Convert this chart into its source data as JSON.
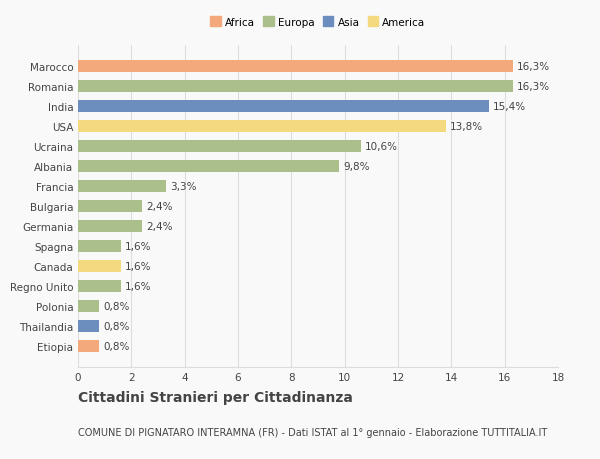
{
  "categories": [
    "Marocco",
    "Romania",
    "India",
    "USA",
    "Ucraina",
    "Albania",
    "Francia",
    "Bulgaria",
    "Germania",
    "Spagna",
    "Canada",
    "Regno Unito",
    "Polonia",
    "Thailandia",
    "Etiopia"
  ],
  "values": [
    16.3,
    16.3,
    15.4,
    13.8,
    10.6,
    9.8,
    3.3,
    2.4,
    2.4,
    1.6,
    1.6,
    1.6,
    0.8,
    0.8,
    0.8
  ],
  "continents": [
    "Africa",
    "Europa",
    "Asia",
    "America",
    "Europa",
    "Europa",
    "Europa",
    "Europa",
    "Europa",
    "Europa",
    "America",
    "Europa",
    "Europa",
    "Asia",
    "Africa"
  ],
  "colors": {
    "Africa": "#F4A97C",
    "Europa": "#AABF8A",
    "Asia": "#6B8EBF",
    "America": "#F5D97E"
  },
  "legend_order": [
    "Africa",
    "Europa",
    "Asia",
    "America"
  ],
  "labels": [
    "16,3%",
    "16,3%",
    "15,4%",
    "13,8%",
    "10,6%",
    "9,8%",
    "3,3%",
    "2,4%",
    "2,4%",
    "1,6%",
    "1,6%",
    "1,6%",
    "0,8%",
    "0,8%",
    "0,8%"
  ],
  "xlim": [
    0,
    18
  ],
  "xticks": [
    0,
    2,
    4,
    6,
    8,
    10,
    12,
    14,
    16,
    18
  ],
  "title": "Cittadini Stranieri per Cittadinanza",
  "subtitle": "COMUNE DI PIGNATARO INTERAMNA (FR) - Dati ISTAT al 1° gennaio - Elaborazione TUTTITALIA.IT",
  "background_color": "#f9f9f9",
  "bar_height": 0.6,
  "grid_color": "#dddddd",
  "text_color": "#444444",
  "label_fontsize": 7.5,
  "tick_fontsize": 7.5,
  "title_fontsize": 10,
  "subtitle_fontsize": 7
}
